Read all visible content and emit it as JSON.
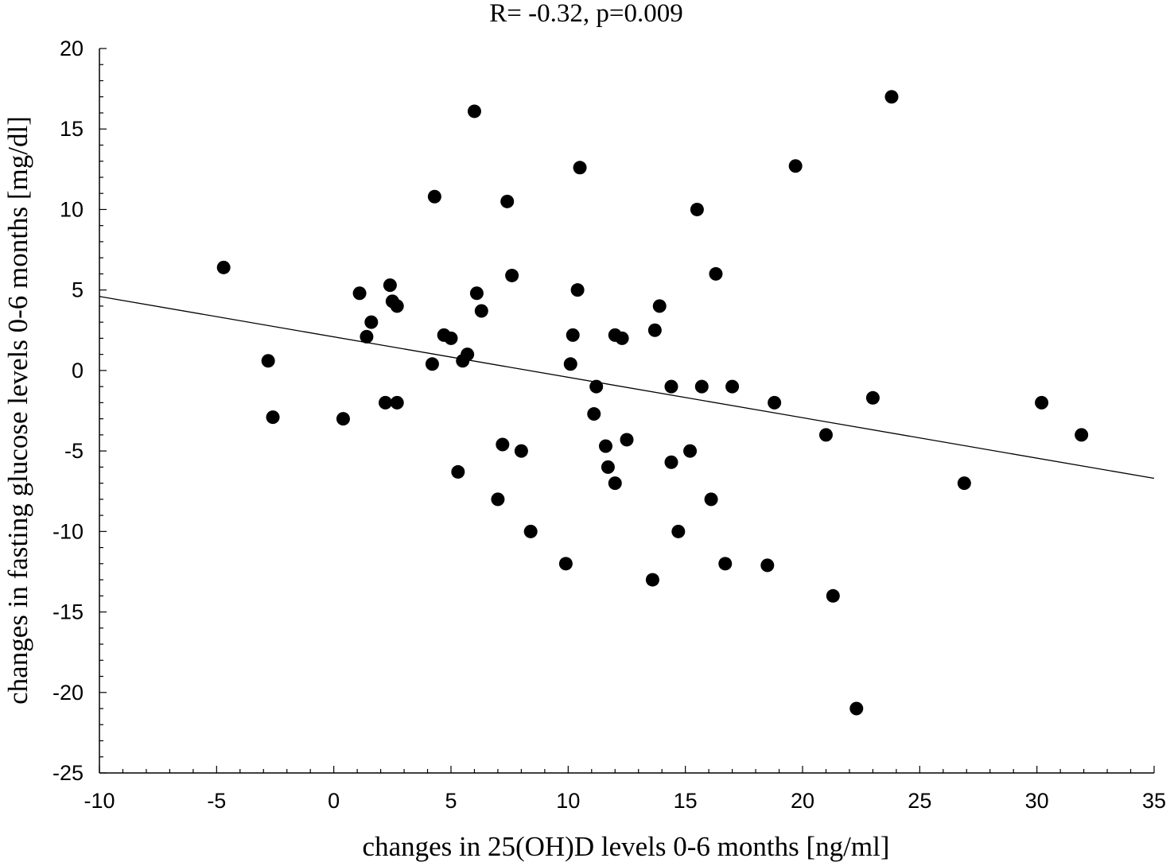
{
  "chart_data": {
    "type": "scatter",
    "title": "R= -0.32, p=0.009",
    "xlabel": "changes in 25(OH)D levels 0-6 months [ng/ml]",
    "ylabel": "changes in fasting glucose levels 0-6 months [mg/dl]",
    "xlim": [
      -10,
      35
    ],
    "ylim": [
      -25,
      20
    ],
    "x_ticks": [
      -10,
      -5,
      0,
      5,
      10,
      15,
      20,
      25,
      30,
      35
    ],
    "y_ticks": [
      -25,
      -20,
      -15,
      -10,
      -5,
      0,
      5,
      10,
      15,
      20
    ],
    "x_tick_labels": [
      "-10",
      "-5",
      "0",
      "5",
      "10",
      "15",
      "20",
      "25",
      "30",
      "35"
    ],
    "y_tick_labels": [
      "-25",
      "-20",
      "-15",
      "-10",
      "-5",
      "0",
      "5",
      "10",
      "15",
      "20"
    ],
    "grid": false,
    "marker_color": "#000000",
    "line_color": "#000000",
    "regression_line": {
      "x": [
        -10,
        35
      ],
      "y": [
        4.6,
        -6.7
      ]
    },
    "points": [
      {
        "x": -4.7,
        "y": 6.4
      },
      {
        "x": -2.8,
        "y": 0.6
      },
      {
        "x": -2.6,
        "y": -2.9
      },
      {
        "x": 0.4,
        "y": -3.0
      },
      {
        "x": 1.1,
        "y": 4.8
      },
      {
        "x": 1.4,
        "y": 2.1
      },
      {
        "x": 1.6,
        "y": 3.0
      },
      {
        "x": 2.2,
        "y": -2.0
      },
      {
        "x": 2.4,
        "y": 5.3
      },
      {
        "x": 2.5,
        "y": 4.3
      },
      {
        "x": 2.7,
        "y": 4.0
      },
      {
        "x": 2.7,
        "y": -2.0
      },
      {
        "x": 4.2,
        "y": 0.4
      },
      {
        "x": 4.3,
        "y": 10.8
      },
      {
        "x": 4.7,
        "y": 2.2
      },
      {
        "x": 5.0,
        "y": 2.0
      },
      {
        "x": 5.3,
        "y": -6.3
      },
      {
        "x": 5.5,
        "y": 0.6
      },
      {
        "x": 5.7,
        "y": 1.0
      },
      {
        "x": 6.0,
        "y": 16.1
      },
      {
        "x": 6.1,
        "y": 4.8
      },
      {
        "x": 6.3,
        "y": 3.7
      },
      {
        "x": 7.0,
        "y": -8.0
      },
      {
        "x": 7.2,
        "y": -4.6
      },
      {
        "x": 7.4,
        "y": 10.5
      },
      {
        "x": 7.6,
        "y": 5.9
      },
      {
        "x": 8.0,
        "y": -5.0
      },
      {
        "x": 8.4,
        "y": -10.0
      },
      {
        "x": 9.9,
        "y": -12.0
      },
      {
        "x": 10.1,
        "y": 0.4
      },
      {
        "x": 10.2,
        "y": 2.2
      },
      {
        "x": 10.4,
        "y": 5.0
      },
      {
        "x": 10.5,
        "y": 12.6
      },
      {
        "x": 11.1,
        "y": -2.7
      },
      {
        "x": 11.2,
        "y": -1.0
      },
      {
        "x": 11.6,
        "y": -4.7
      },
      {
        "x": 11.7,
        "y": -6.0
      },
      {
        "x": 12.0,
        "y": -7.0
      },
      {
        "x": 12.0,
        "y": 2.2
      },
      {
        "x": 12.3,
        "y": 2.0
      },
      {
        "x": 12.5,
        "y": -4.3
      },
      {
        "x": 13.6,
        "y": -13.0
      },
      {
        "x": 13.7,
        "y": 2.5
      },
      {
        "x": 13.9,
        "y": 4.0
      },
      {
        "x": 14.4,
        "y": -1.0
      },
      {
        "x": 14.4,
        "y": -5.7
      },
      {
        "x": 14.7,
        "y": -10.0
      },
      {
        "x": 15.2,
        "y": -5.0
      },
      {
        "x": 15.5,
        "y": 10.0
      },
      {
        "x": 15.7,
        "y": -1.0
      },
      {
        "x": 16.1,
        "y": -8.0
      },
      {
        "x": 16.3,
        "y": 6.0
      },
      {
        "x": 16.7,
        "y": -12.0
      },
      {
        "x": 17.0,
        "y": -1.0
      },
      {
        "x": 18.5,
        "y": -12.1
      },
      {
        "x": 18.8,
        "y": -2.0
      },
      {
        "x": 19.7,
        "y": 12.7
      },
      {
        "x": 21.0,
        "y": -4.0
      },
      {
        "x": 21.3,
        "y": -14.0
      },
      {
        "x": 22.3,
        "y": -21.0
      },
      {
        "x": 23.0,
        "y": -1.7
      },
      {
        "x": 23.8,
        "y": 17.0
      },
      {
        "x": 26.9,
        "y": -7.0
      },
      {
        "x": 30.2,
        "y": -2.0
      },
      {
        "x": 31.9,
        "y": -4.0
      }
    ]
  }
}
